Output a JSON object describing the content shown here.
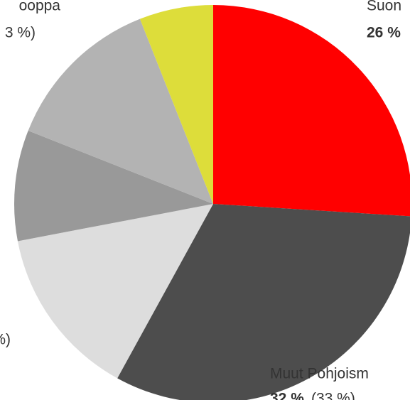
{
  "chart_data": {
    "type": "pie",
    "values": [
      26,
      32,
      14,
      9,
      13,
      6
    ],
    "colors": [
      "#ff0000",
      "#4d4d4d",
      "#dddddd",
      "#999999",
      "#b3b3b3",
      "#dddd3a"
    ],
    "annotations": [
      "Suon",
      "26 %",
      "ooppa",
      "3 %)",
      "%)",
      "Muut Pohjoism",
      "32 %",
      "(33 %)"
    ]
  }
}
